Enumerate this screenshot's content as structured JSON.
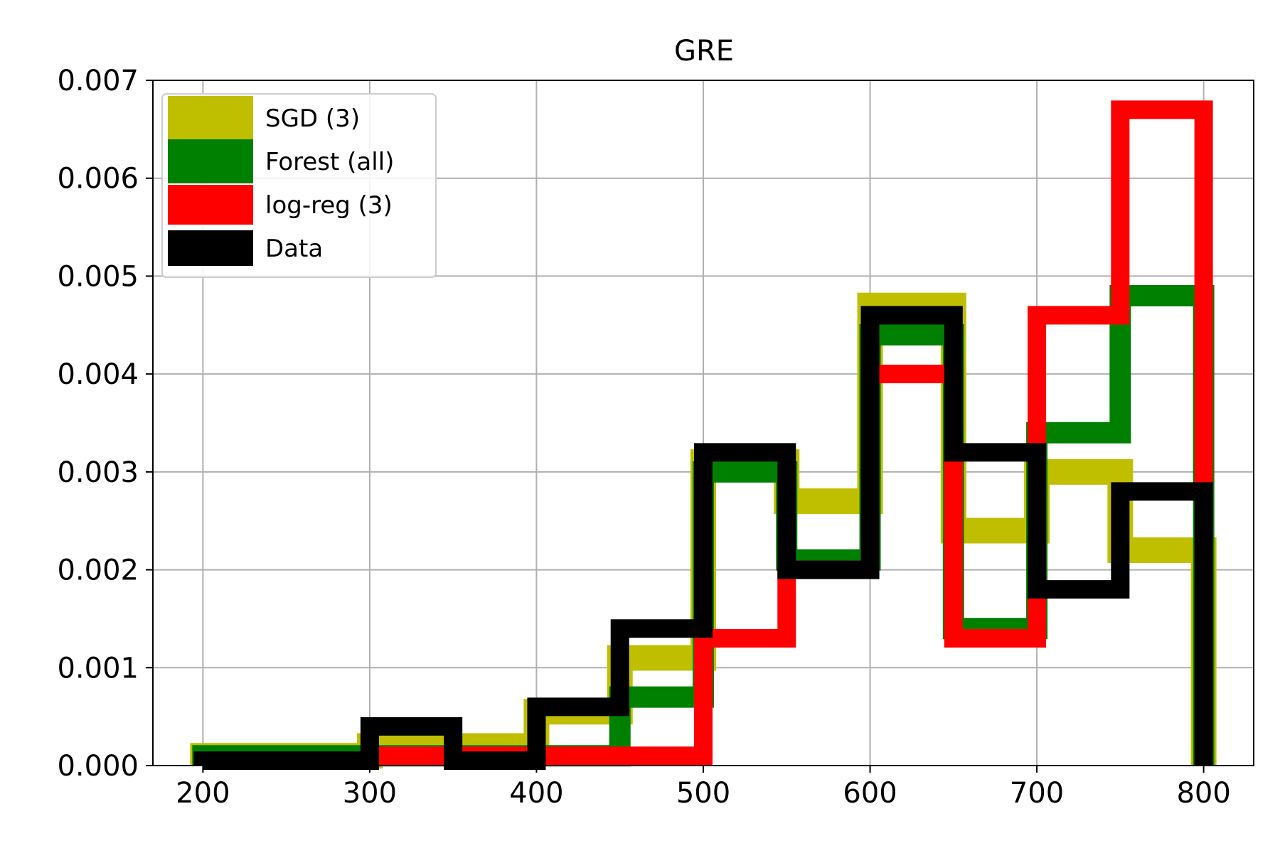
{
  "chart_data": {
    "type": "histogram",
    "title": "GRE",
    "xlabel": "",
    "ylabel": "",
    "xlim": [
      170,
      830
    ],
    "ylim": [
      0,
      0.007
    ],
    "xticks": [
      200,
      300,
      400,
      500,
      600,
      700,
      800
    ],
    "yticks": [
      0.0,
      0.001,
      0.002,
      0.003,
      0.004,
      0.005,
      0.006,
      0.007
    ],
    "xtick_labels": [
      "200",
      "300",
      "400",
      "500",
      "600",
      "700",
      "800"
    ],
    "ytick_labels": [
      "0.000",
      "0.001",
      "0.002",
      "0.003",
      "0.004",
      "0.005",
      "0.006",
      "0.007"
    ],
    "grid": true,
    "legend_position": "top-left",
    "bin_edges": [
      200,
      250,
      300,
      350,
      400,
      450,
      500,
      550,
      600,
      650,
      700,
      750,
      800
    ],
    "series": [
      {
        "name": "SGD (3)",
        "color": "#bfbf00",
        "bins": [
          {
            "x0": 200,
            "x1": 300,
            "y": 0.0001
          },
          {
            "x0": 300,
            "x1": 400,
            "y": 0.0002
          },
          {
            "x0": 400,
            "x1": 450,
            "y": 0.00055
          },
          {
            "x0": 450,
            "x1": 500,
            "y": 0.0011
          },
          {
            "x0": 500,
            "x1": 550,
            "y": 0.0031
          },
          {
            "x0": 550,
            "x1": 600,
            "y": 0.0027
          },
          {
            "x0": 600,
            "x1": 650,
            "y": 0.0047
          },
          {
            "x0": 650,
            "x1": 700,
            "y": 0.0024
          },
          {
            "x0": 700,
            "x1": 750,
            "y": 0.003
          },
          {
            "x0": 750,
            "x1": 800,
            "y": 0.0022
          }
        ]
      },
      {
        "name": "Forest (all)",
        "color": "#008000",
        "bins": [
          {
            "x0": 200,
            "x1": 400,
            "y": 0.0001
          },
          {
            "x0": 400,
            "x1": 450,
            "y": 0.0001
          },
          {
            "x0": 450,
            "x1": 500,
            "y": 0.0007
          },
          {
            "x0": 500,
            "x1": 550,
            "y": 0.003
          },
          {
            "x0": 550,
            "x1": 600,
            "y": 0.0021
          },
          {
            "x0": 600,
            "x1": 650,
            "y": 0.0044
          },
          {
            "x0": 650,
            "x1": 700,
            "y": 0.0014
          },
          {
            "x0": 700,
            "x1": 750,
            "y": 0.0034
          },
          {
            "x0": 750,
            "x1": 800,
            "y": 0.0048
          }
        ]
      },
      {
        "name": "log-reg (3)",
        "color": "#ff0000",
        "bins": [
          {
            "x0": 300,
            "x1": 400,
            "y": 0.0001
          },
          {
            "x0": 400,
            "x1": 500,
            "y": 0.0001
          },
          {
            "x0": 500,
            "x1": 550,
            "y": 0.0013
          },
          {
            "x0": 550,
            "x1": 600,
            "y": 0.002
          },
          {
            "x0": 600,
            "x1": 650,
            "y": 0.004
          },
          {
            "x0": 650,
            "x1": 700,
            "y": 0.0013
          },
          {
            "x0": 700,
            "x1": 750,
            "y": 0.0046
          },
          {
            "x0": 750,
            "x1": 800,
            "y": 0.0067
          }
        ]
      },
      {
        "name": "Data",
        "color": "#000000",
        "bins": [
          {
            "x0": 200,
            "x1": 300,
            "y": 5e-05
          },
          {
            "x0": 300,
            "x1": 350,
            "y": 0.0004
          },
          {
            "x0": 350,
            "x1": 400,
            "y": 5e-05
          },
          {
            "x0": 400,
            "x1": 450,
            "y": 0.0006
          },
          {
            "x0": 450,
            "x1": 500,
            "y": 0.0014
          },
          {
            "x0": 500,
            "x1": 550,
            "y": 0.0032
          },
          {
            "x0": 550,
            "x1": 600,
            "y": 0.002
          },
          {
            "x0": 600,
            "x1": 650,
            "y": 0.0046
          },
          {
            "x0": 650,
            "x1": 700,
            "y": 0.0032
          },
          {
            "x0": 700,
            "x1": 750,
            "y": 0.0018
          },
          {
            "x0": 750,
            "x1": 800,
            "y": 0.0028
          }
        ]
      }
    ]
  }
}
